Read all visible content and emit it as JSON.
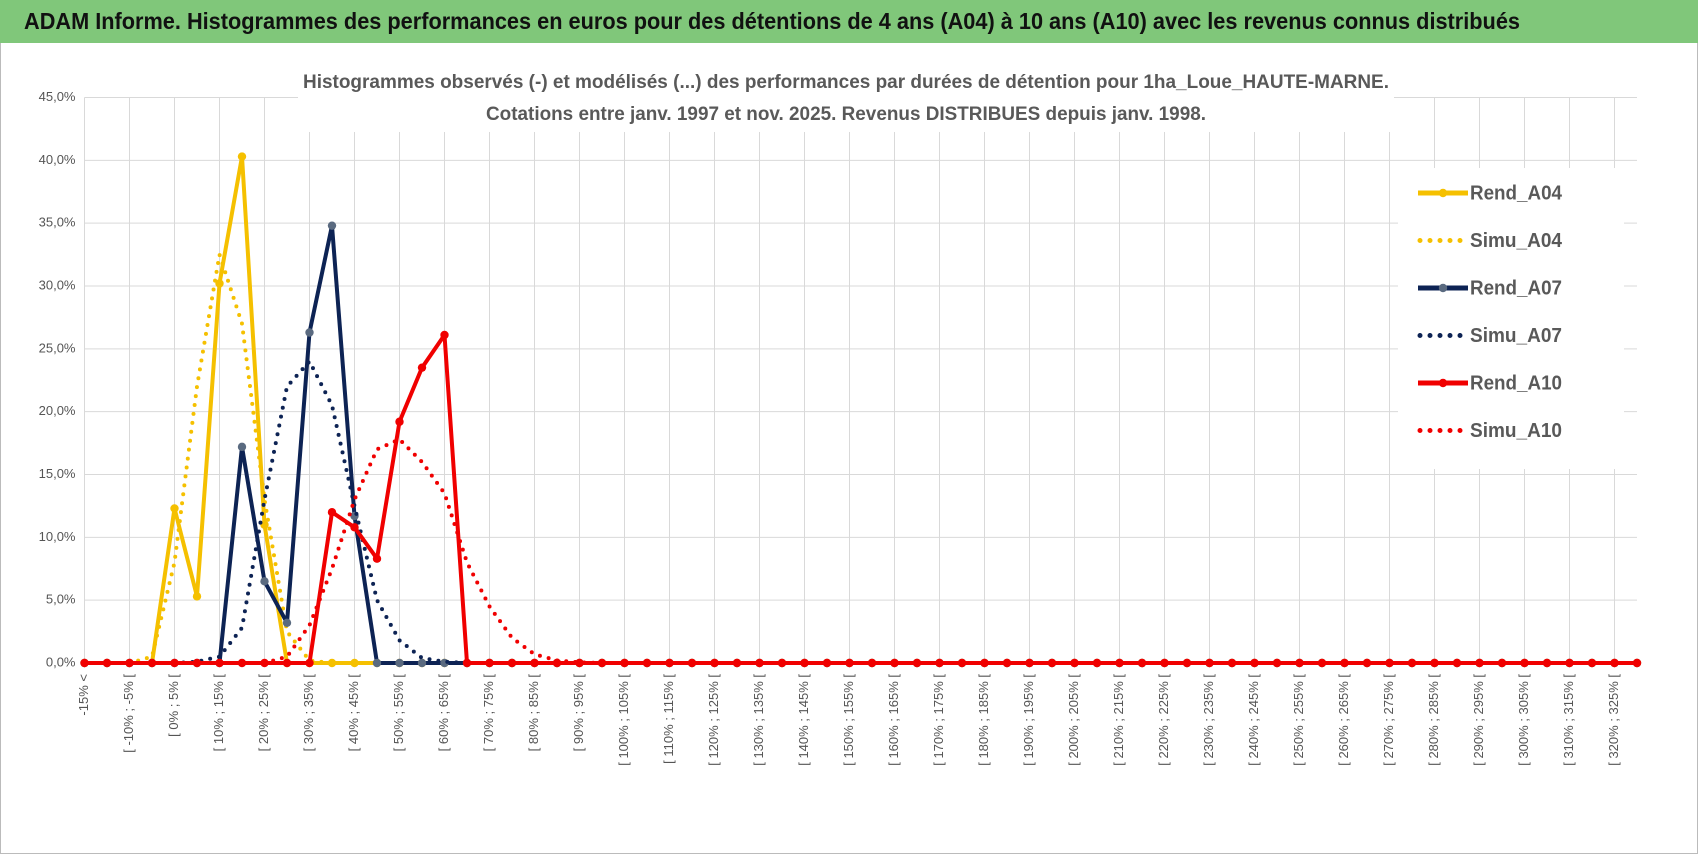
{
  "header": {
    "title": "ADAM Informe. Histogrammes des performances en euros pour des détentions de 4 ans (A04) à 10 ans (A10) avec les revenus connus distribués"
  },
  "chart_data": {
    "type": "line",
    "title": "Histogrammes observés (-) et modélisés (...) des performances par durées de détention pour 1ha_Loue_HAUTE-MARNE.",
    "subtitle": "Cotations entre janv. 1997 et nov. 2025. Revenus DISTRIBUES depuis janv. 1998.",
    "categories": [
      "-15% <",
      null,
      "[ -10% ; -5% [",
      null,
      "[ 0% ; 5% [",
      null,
      "[ 10% ; 15% [",
      null,
      "[ 20% ; 25% [",
      null,
      "[ 30% ; 35% [",
      null,
      "[ 40% ; 45% [",
      null,
      "[ 50% ; 55% [",
      null,
      "[ 60% ; 65% [",
      null,
      "[ 70% ; 75% [",
      null,
      "[ 80% ; 85% [",
      null,
      "[ 90% ; 95% [",
      null,
      "[ 100% ; 105% [",
      null,
      "[ 110% ; 115% [",
      null,
      "[ 120% ; 125% [",
      null,
      "[ 130% ; 135% [",
      null,
      "[ 140% ; 145% [",
      null,
      "[ 150% ; 155% [",
      null,
      "[ 160% ; 165% [",
      null,
      "[ 170% ; 175% [",
      null,
      "[ 180% ; 185% [",
      null,
      "[ 190% ; 195% [",
      null,
      "[ 200% ; 205% [",
      null,
      "[ 210% ; 215% [",
      null,
      "[ 220% ; 225% [",
      null,
      "[ 230% ; 235% [",
      null,
      "[ 240% ; 245% [",
      null,
      "[ 250% ; 255% [",
      null,
      "[ 260% ; 265% [",
      null,
      "[ 270% ; 275% [",
      null,
      "[ 280% ; 285% [",
      null,
      "[ 290% ; 295% [",
      null,
      "[ 300% ; 305% [",
      null,
      "[ 310% ; 315% [",
      null,
      "[ 320% ; 325% [",
      null
    ],
    "series": [
      {
        "name": "Rend_A04",
        "color": "#f5c000",
        "marker_color": "#f5c000",
        "dash": "solid",
        "markers": true,
        "values": [
          0,
          0,
          0,
          0,
          12.3,
          5.3,
          30.2,
          40.3,
          11,
          0,
          0,
          0,
          0,
          0,
          0,
          0,
          0,
          0,
          0,
          0,
          0,
          0,
          0,
          0,
          0,
          0,
          0,
          0,
          0,
          0,
          0,
          0,
          0,
          0,
          0,
          0,
          0,
          0,
          0,
          0,
          0,
          0,
          0,
          0,
          0,
          0,
          0,
          0,
          0,
          0,
          0,
          0,
          0,
          0,
          0,
          0,
          0,
          0,
          0,
          0,
          0,
          0,
          0,
          0,
          0,
          0,
          0,
          0,
          0,
          0
        ]
      },
      {
        "name": "Simu_A04",
        "color": "#f5c000",
        "dash": "dotted",
        "markers": false,
        "values": [
          0,
          0,
          0,
          0.5,
          8,
          22,
          32.5,
          27,
          13,
          2.5,
          0.2,
          0,
          0,
          0,
          0,
          0,
          0,
          0,
          0,
          0,
          0,
          0,
          0,
          0,
          0,
          0,
          0,
          0,
          0,
          0,
          0,
          0,
          0,
          0,
          0,
          0,
          0,
          0,
          0,
          0,
          0,
          0,
          0,
          0,
          0,
          0,
          0,
          0,
          0,
          0,
          0,
          0,
          0,
          0,
          0,
          0,
          0,
          0,
          0,
          0,
          0,
          0,
          0,
          0,
          0,
          0,
          0,
          0,
          0,
          0
        ]
      },
      {
        "name": "Rend_A07",
        "color": "#0d2354",
        "marker_color": "#5a6a80",
        "dash": "solid",
        "markers": true,
        "values": [
          0,
          0,
          0,
          0,
          0,
          0,
          0,
          17.2,
          6.5,
          3.2,
          26.3,
          34.8,
          11.7,
          0,
          0,
          0,
          0,
          0,
          0,
          0,
          0,
          0,
          0,
          0,
          0,
          0,
          0,
          0,
          0,
          0,
          0,
          0,
          0,
          0,
          0,
          0,
          0,
          0,
          0,
          0,
          0,
          0,
          0,
          0,
          0,
          0,
          0,
          0,
          0,
          0,
          0,
          0,
          0,
          0,
          0,
          0,
          0,
          0,
          0,
          0,
          0,
          0,
          0,
          0,
          0,
          0,
          0,
          0,
          0,
          0
        ]
      },
      {
        "name": "Simu_A07",
        "color": "#0d2354",
        "dash": "dotted",
        "markers": false,
        "values": [
          0,
          0,
          0,
          0,
          0,
          0.1,
          0.5,
          2.8,
          13,
          22,
          24,
          20.5,
          12.5,
          5,
          1.8,
          0.4,
          0.1,
          0,
          0,
          0,
          0,
          0,
          0,
          0,
          0,
          0,
          0,
          0,
          0,
          0,
          0,
          0,
          0,
          0,
          0,
          0,
          0,
          0,
          0,
          0,
          0,
          0,
          0,
          0,
          0,
          0,
          0,
          0,
          0,
          0,
          0,
          0,
          0,
          0,
          0,
          0,
          0,
          0,
          0,
          0,
          0,
          0,
          0,
          0,
          0,
          0,
          0,
          0,
          0,
          0
        ]
      },
      {
        "name": "Rend_A10",
        "color": "#f00000",
        "marker_color": "#f00000",
        "dash": "solid",
        "markers": true,
        "values": [
          0,
          0,
          0,
          0,
          0,
          0,
          0,
          0,
          0,
          0,
          0,
          12,
          10.8,
          8.3,
          19.2,
          23.5,
          26.1,
          0,
          0,
          0,
          0,
          0,
          0,
          0,
          0,
          0,
          0,
          0,
          0,
          0,
          0,
          0,
          0,
          0,
          0,
          0,
          0,
          0,
          0,
          0,
          0,
          0,
          0,
          0,
          0,
          0,
          0,
          0,
          0,
          0,
          0,
          0,
          0,
          0,
          0,
          0,
          0,
          0,
          0,
          0,
          0,
          0,
          0,
          0,
          0,
          0,
          0,
          0,
          0,
          0
        ]
      },
      {
        "name": "Simu_A10",
        "color": "#f00000",
        "dash": "dotted",
        "markers": false,
        "values": [
          0,
          0,
          0,
          0,
          0,
          0,
          0,
          0,
          0,
          0.5,
          3,
          7.5,
          13,
          17,
          17.8,
          16,
          13.5,
          8,
          4.5,
          2,
          0.7,
          0.2,
          0.05,
          0,
          0,
          0,
          0,
          0,
          0,
          0,
          0,
          0,
          0,
          0,
          0,
          0,
          0,
          0,
          0,
          0,
          0,
          0,
          0,
          0,
          0,
          0,
          0,
          0,
          0,
          0,
          0,
          0,
          0,
          0,
          0,
          0,
          0,
          0,
          0,
          0,
          0,
          0,
          0,
          0,
          0,
          0,
          0,
          0,
          0,
          0
        ]
      }
    ],
    "ylim": [
      0,
      45
    ],
    "yticks": [
      {
        "value": 0,
        "label": "0,0%"
      },
      {
        "value": 5,
        "label": "5,0%"
      },
      {
        "value": 10,
        "label": "10,0%"
      },
      {
        "value": 15,
        "label": "15,0%"
      },
      {
        "value": 20,
        "label": "20,0%"
      },
      {
        "value": 25,
        "label": "25,0%"
      },
      {
        "value": 30,
        "label": "30,0%"
      },
      {
        "value": 35,
        "label": "35,0%"
      },
      {
        "value": 40,
        "label": "40,0%"
      },
      {
        "value": 45,
        "label": "45,0%"
      }
    ],
    "grid": true,
    "legend": "right"
  }
}
